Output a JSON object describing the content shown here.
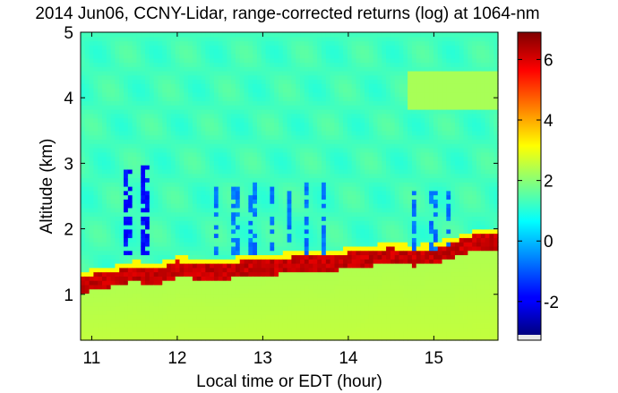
{
  "chart_data": {
    "type": "heatmap",
    "title": "2014 Jun06, CCNY-Lidar, range-corrected returns (log) at 1064-nm",
    "xlabel": "Local time or EDT (hour)",
    "ylabel": "Altitude (km)",
    "xlim": [
      10.87,
      15.75
    ],
    "ylim": [
      0.3,
      5.0
    ],
    "x_ticks": [
      11,
      12,
      13,
      14,
      15
    ],
    "y_ticks": [
      1,
      2,
      3,
      4,
      5
    ],
    "colorbar": {
      "limits": [
        -3.1,
        6.9
      ],
      "ticks": [
        -2,
        0,
        2,
        4,
        6
      ],
      "colormap": "jet",
      "nodata_color": "#e8e8e8"
    },
    "background_value": 1.3,
    "near_ground_value": 2.6,
    "boundary_layer_top": {
      "x": [
        10.87,
        11.0,
        11.25,
        11.5,
        11.75,
        12.0,
        12.25,
        12.5,
        12.75,
        13.0,
        13.25,
        13.5,
        13.75,
        14.0,
        14.25,
        14.5,
        14.75,
        15.0,
        15.25,
        15.5,
        15.75
      ],
      "altitude_km": [
        1.2,
        1.25,
        1.3,
        1.38,
        1.32,
        1.45,
        1.42,
        1.4,
        1.45,
        1.47,
        1.5,
        1.55,
        1.52,
        1.58,
        1.62,
        1.65,
        1.62,
        1.65,
        1.75,
        1.85,
        1.88
      ],
      "value": 6.5
    },
    "features": [
      {
        "kind": "low-signal streaks",
        "x_range": [
          11.25,
          11.65
        ],
        "altitude_km": [
          1.6,
          3.0
        ],
        "value": -1.5
      },
      {
        "kind": "low-signal streaks",
        "x_range": [
          12.45,
          13.8
        ],
        "altitude_km": [
          1.6,
          2.7
        ],
        "value": -0.5
      },
      {
        "kind": "low-signal streaks",
        "x_range": [
          14.65,
          15.2
        ],
        "altitude_km": [
          1.7,
          2.6
        ],
        "value": -0.5
      },
      {
        "kind": "aerosol layer",
        "x_range": [
          14.7,
          15.75
        ],
        "altitude_km": [
          3.8,
          4.4
        ],
        "value": 2.3
      }
    ]
  }
}
